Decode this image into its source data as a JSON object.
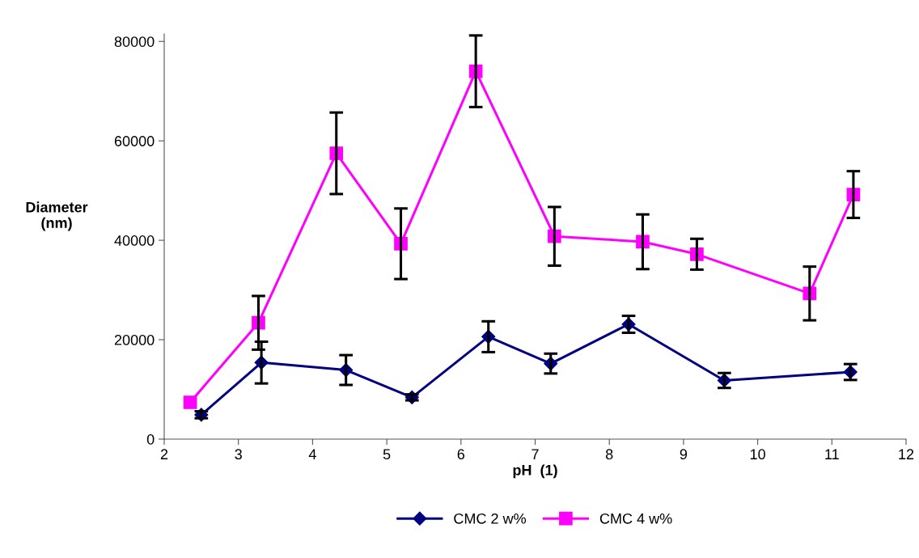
{
  "chart_data": {
    "type": "line",
    "xlabel": "pH  (1)",
    "ylabel": "Diameter\n(nm)",
    "xlim": [
      2,
      12
    ],
    "xticks": [
      2,
      3,
      4,
      5,
      6,
      7,
      8,
      9,
      10,
      11,
      12
    ],
    "ylim": [
      0,
      81500
    ],
    "yticks": [
      0,
      20000,
      40000,
      60000,
      80000
    ],
    "grid": false,
    "legend": "bottom",
    "line_style": "solid",
    "series": [
      {
        "name": "CMC 2 w%",
        "color": "#000080",
        "marker": "diamond",
        "x": [
          2.5,
          3.31,
          4.45,
          5.34,
          6.37,
          7.21,
          8.26,
          9.55,
          11.25
        ],
        "values": [
          4900,
          15400,
          13900,
          8400,
          20600,
          15200,
          23100,
          11800,
          13500
        ],
        "errors": [
          700,
          4200,
          3000,
          600,
          3100,
          2000,
          1700,
          1500,
          1600
        ]
      },
      {
        "name": "CMC 4 w%",
        "color": "#ff00ff",
        "marker": "square",
        "x": [
          2.35,
          3.27,
          4.32,
          5.19,
          6.2,
          7.26,
          8.45,
          9.18,
          10.7,
          11.29
        ],
        "values": [
          7400,
          23400,
          57500,
          39300,
          74000,
          40800,
          39700,
          37200,
          29300,
          49200
        ],
        "errors": [
          null,
          5400,
          8200,
          7100,
          7200,
          5900,
          5500,
          3100,
          5400,
          4700
        ]
      }
    ]
  }
}
